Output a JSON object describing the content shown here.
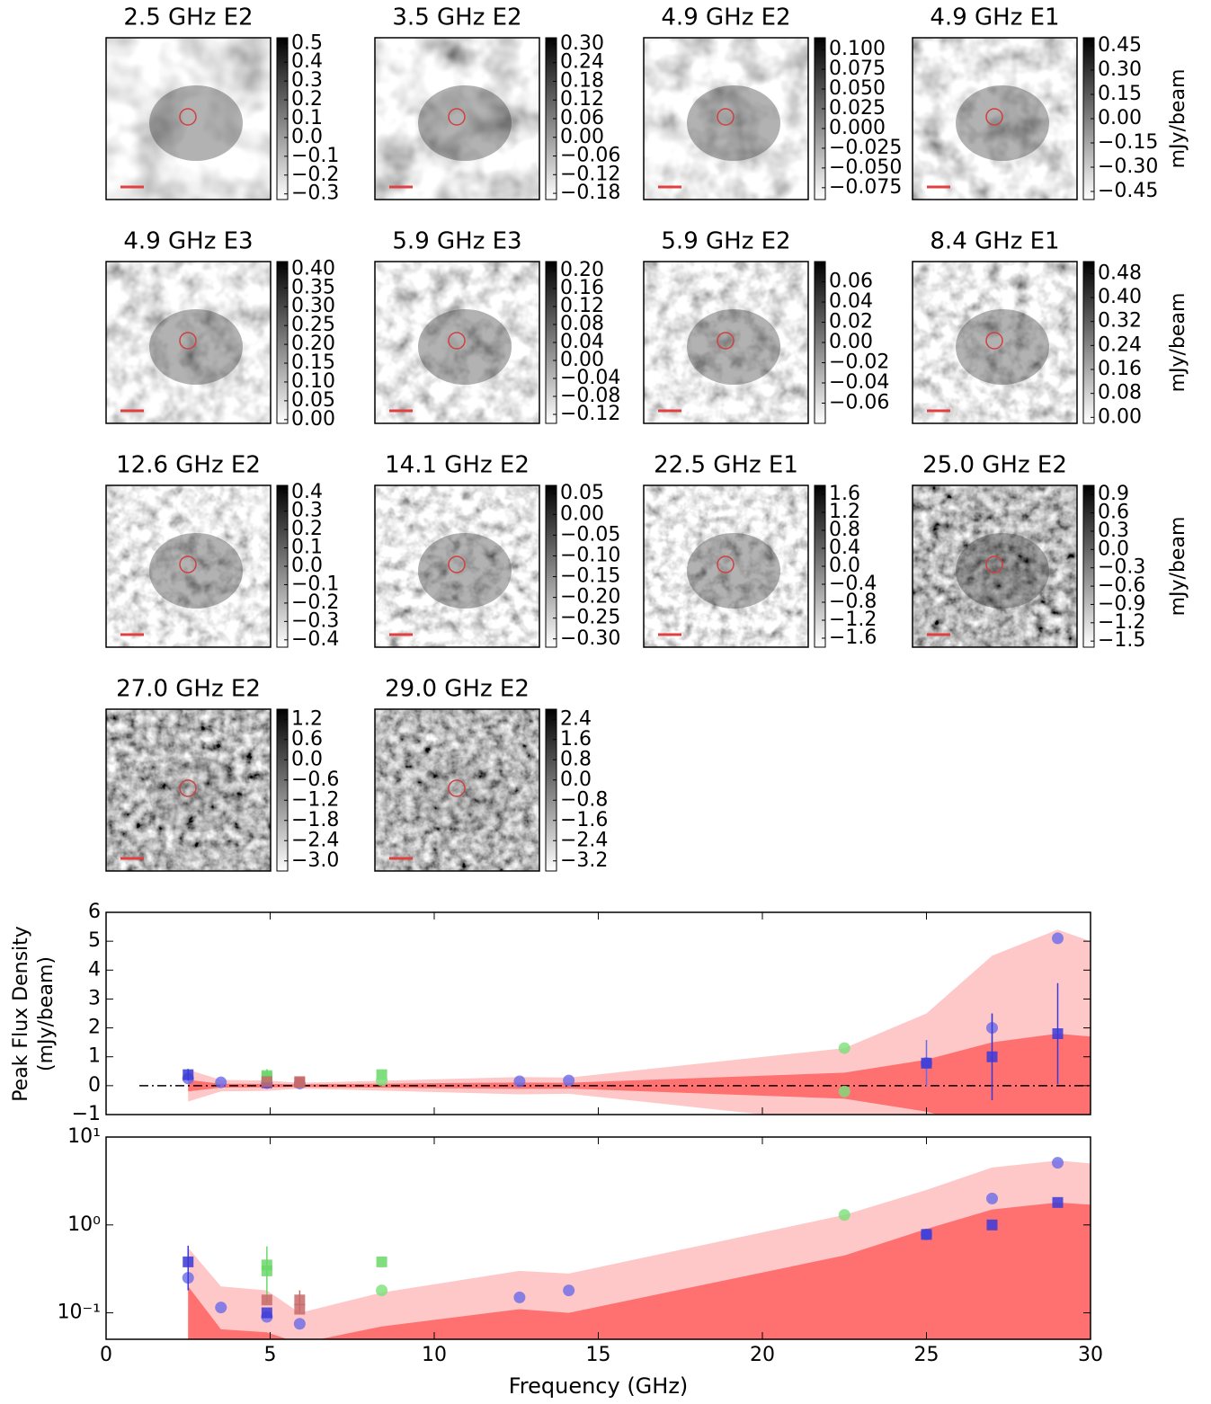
{
  "chart_data": [
    {
      "type": "image",
      "title": "2.5 GHz E2",
      "clim": [
        -0.33,
        0.53
      ],
      "cticks": [
        0.5,
        0.4,
        0.3,
        0.2,
        0.1,
        {
          "value": 0,
          "label": "0.0"
        },
        {
          "value": -0.1,
          "label": "−0.1"
        },
        {
          "value": -0.2,
          "label": "−0.2"
        },
        {
          "value": -0.3,
          "label": "−0.3"
        }
      ]
    },
    {
      "type": "image",
      "title": "3.5 GHz E2",
      "clim": [
        -0.2,
        0.32
      ],
      "cticks": [
        {
          "value": 0.3,
          "label": "0.30"
        },
        0.24,
        0.18,
        0.12,
        0.06,
        {
          "value": 0,
          "label": "0.00"
        },
        {
          "value": -0.06,
          "label": "−0.06"
        },
        {
          "value": -0.12,
          "label": "−0.12"
        },
        {
          "value": -0.18,
          "label": "−0.18"
        }
      ]
    },
    {
      "type": "image",
      "title": "4.9 GHz E2",
      "clim": [
        -0.09,
        0.115
      ],
      "cticks": [
        {
          "value": 0.1,
          "label": "0.100"
        },
        0.075,
        {
          "value": 0.05,
          "label": "0.050"
        },
        0.025,
        {
          "value": 0,
          "label": "0.000"
        },
        {
          "value": -0.025,
          "label": "−0.025"
        },
        {
          "value": -0.05,
          "label": "−0.050"
        },
        {
          "value": -0.075,
          "label": "−0.075"
        }
      ]
    },
    {
      "type": "image",
      "title": "4.9 GHz E1",
      "clim": [
        -0.5,
        0.5
      ],
      "cbar_label": "mJy/beam",
      "cticks": [
        0.45,
        {
          "value": 0.3,
          "label": "0.30"
        },
        0.15,
        {
          "value": 0,
          "label": "0.00"
        },
        {
          "value": -0.15,
          "label": "−0.15"
        },
        {
          "value": -0.3,
          "label": "−0.30"
        },
        {
          "value": -0.45,
          "label": "−0.45"
        }
      ]
    },
    {
      "type": "image",
      "title": "4.9 GHz E3",
      "clim": [
        -0.01,
        0.42
      ],
      "cticks": [
        {
          "value": 0.4,
          "label": "0.40"
        },
        0.35,
        {
          "value": 0.3,
          "label": "0.30"
        },
        0.25,
        {
          "value": 0.2,
          "label": "0.20"
        },
        0.15,
        {
          "value": 0.1,
          "label": "0.10"
        },
        0.05,
        {
          "value": 0,
          "label": "0.00"
        }
      ]
    },
    {
      "type": "image",
      "title": "5.9 GHz E3",
      "clim": [
        -0.14,
        0.22
      ],
      "cticks": [
        {
          "value": 0.2,
          "label": "0.20"
        },
        0.16,
        0.12,
        0.08,
        0.04,
        {
          "value": 0,
          "label": "0.00"
        },
        {
          "value": -0.04,
          "label": "−0.04"
        },
        {
          "value": -0.08,
          "label": "−0.08"
        },
        {
          "value": -0.12,
          "label": "−0.12"
        }
      ]
    },
    {
      "type": "image",
      "title": "5.9 GHz E2",
      "clim": [
        -0.08,
        0.08
      ],
      "cticks": [
        0.06,
        0.04,
        0.02,
        {
          "value": 0,
          "label": "0.00"
        },
        {
          "value": -0.02,
          "label": "−0.02"
        },
        {
          "value": -0.04,
          "label": "−0.04"
        },
        {
          "value": -0.06,
          "label": "−0.06"
        }
      ]
    },
    {
      "type": "image",
      "title": "8.4 GHz E1",
      "clim": [
        -0.02,
        0.52
      ],
      "cbar_label": "mJy/beam",
      "cticks": [
        0.48,
        {
          "value": 0.4,
          "label": "0.40"
        },
        0.32,
        0.24,
        0.16,
        0.08,
        {
          "value": 0,
          "label": "0.00"
        }
      ]
    },
    {
      "type": "image",
      "title": "12.6 GHz E2",
      "clim": [
        -0.44,
        0.44
      ],
      "cticks": [
        0.4,
        0.3,
        0.2,
        0.1,
        {
          "value": 0,
          "label": "0.0"
        },
        {
          "value": -0.1,
          "label": "−0.1"
        },
        {
          "value": -0.2,
          "label": "−0.2"
        },
        {
          "value": -0.3,
          "label": "−0.3"
        },
        {
          "value": -0.4,
          "label": "−0.4"
        }
      ]
    },
    {
      "type": "image",
      "title": "14.1 GHz E2",
      "clim": [
        -0.32,
        0.07
      ],
      "cticks": [
        0.05,
        {
          "value": 0,
          "label": "0.00"
        },
        {
          "value": -0.05,
          "label": "−0.05"
        },
        {
          "value": -0.1,
          "label": "−0.10"
        },
        {
          "value": -0.15,
          "label": "−0.15"
        },
        {
          "value": -0.2,
          "label": "−0.20"
        },
        {
          "value": -0.25,
          "label": "−0.25"
        },
        {
          "value": -0.3,
          "label": "−0.30"
        }
      ]
    },
    {
      "type": "image",
      "title": "22.5 GHz E1",
      "clim": [
        -1.8,
        1.8
      ],
      "cticks": [
        1.6,
        1.2,
        0.8,
        0.4,
        {
          "value": 0,
          "label": "0.0"
        },
        {
          "value": -0.4,
          "label": "−0.4"
        },
        {
          "value": -0.8,
          "label": "−0.8"
        },
        {
          "value": -1.2,
          "label": "−1.2"
        },
        {
          "value": -1.6,
          "label": "−1.6"
        }
      ]
    },
    {
      "type": "image",
      "title": "25.0 GHz E2",
      "clim": [
        -1.6,
        1.05
      ],
      "cbar_label": "mJy/beam",
      "cticks": [
        0.9,
        0.6,
        0.3,
        {
          "value": 0,
          "label": "0.0"
        },
        {
          "value": -0.3,
          "label": "−0.3"
        },
        {
          "value": -0.6,
          "label": "−0.6"
        },
        {
          "value": -0.9,
          "label": "−0.9"
        },
        {
          "value": -1.2,
          "label": "−1.2"
        },
        {
          "value": -1.5,
          "label": "−1.5"
        }
      ]
    },
    {
      "type": "image",
      "title": "27.0 GHz E2",
      "clim": [
        -3.3,
        1.5
      ],
      "cticks": [
        1.2,
        0.6,
        {
          "value": 0,
          "label": "0.0"
        },
        {
          "value": -0.6,
          "label": "−0.6"
        },
        {
          "value": -1.2,
          "label": "−1.2"
        },
        {
          "value": -1.8,
          "label": "−1.8"
        },
        {
          "value": -2.4,
          "label": "−2.4"
        },
        {
          "value": -3,
          "label": "−3.0"
        }
      ]
    },
    {
      "type": "image",
      "title": "29.0 GHz E2",
      "clim": [
        -3.6,
        2.8
      ],
      "cticks": [
        2.4,
        1.6,
        0.8,
        {
          "value": 0,
          "label": "0.0"
        },
        {
          "value": -0.8,
          "label": "−0.8"
        },
        {
          "value": -1.6,
          "label": "−1.6"
        },
        {
          "value": -2.4,
          "label": "−2.4"
        },
        {
          "value": -3.2,
          "label": "−3.2"
        }
      ]
    },
    {
      "type": "scatter",
      "ylabel": [
        "Peak Flux Density",
        "(mJy/beam)"
      ],
      "log": false,
      "xlim": [
        0,
        30
      ],
      "xticks": [
        0,
        5,
        10,
        15,
        20,
        25,
        30
      ],
      "show_xticklabels": false,
      "ylim": [
        -1,
        6
      ],
      "yticks": [
        {
          "value": -1,
          "label": "−1"
        },
        0,
        1,
        2,
        3,
        4,
        5,
        6
      ],
      "hline": 0,
      "bands": [
        {
          "color": "#ffc8c8",
          "x": [
            2.5,
            3.5,
            4.9,
            5.9,
            8.4,
            12.6,
            14.1,
            22.5,
            25,
            27,
            29,
            30
          ],
          "upper": [
            0.55,
            0.2,
            0.18,
            0.1,
            0.17,
            0.3,
            0.28,
            1.3,
            2.5,
            4.5,
            5.4,
            5.0
          ],
          "lower": [
            -0.55,
            -0.2,
            -0.18,
            -0.1,
            -0.17,
            -0.3,
            -0.28,
            -1.3,
            -2.5,
            -4.5,
            -5.4,
            -5.0
          ]
        },
        {
          "color": "#ff7070",
          "x": [
            2.5,
            3.5,
            4.9,
            5.9,
            8.4,
            12.6,
            14.1,
            22.5,
            25,
            27,
            29,
            30
          ],
          "upper": [
            0.2,
            0.065,
            0.06,
            0.045,
            0.07,
            0.11,
            0.1,
            0.45,
            0.9,
            1.5,
            1.8,
            1.7
          ],
          "lower": [
            -0.2,
            -0.065,
            -0.06,
            -0.045,
            -0.07,
            -0.11,
            -0.1,
            -0.45,
            -0.9,
            -1.5,
            -1.8,
            -1.7
          ]
        }
      ],
      "series": [
        {
          "color": "#6a6ae8",
          "marker": "circle",
          "x": [
            2.5,
            3.5,
            4.9,
            5.9,
            12.6,
            14.1,
            25,
            27,
            29
          ],
          "values": [
            0.25,
            0.115,
            0.09,
            0.075,
            0.15,
            0.18,
            0.78,
            2.0,
            5.1
          ],
          "errors": [
            null,
            null,
            null,
            null,
            null,
            null,
            0.8,
            0.5,
            null
          ]
        },
        {
          "color": "#3a3ad8",
          "marker": "square",
          "x": [
            2.5,
            4.9,
            25,
            27,
            29
          ],
          "values": [
            0.38,
            0.1,
            0.78,
            1.0,
            1.8
          ],
          "errors": [
            0.2,
            null,
            null,
            1.5,
            1.75
          ]
        },
        {
          "color": "#6ad86a",
          "marker": "square",
          "x": [
            4.9,
            4.9,
            8.4
          ],
          "values": [
            0.35,
            0.3,
            0.38
          ],
          "errors": [
            0.22,
            null,
            null
          ]
        },
        {
          "color": "#7ae07a",
          "marker": "circle",
          "x": [
            8.4,
            22.5,
            22.5
          ],
          "values": [
            0.18,
            1.3,
            -0.2
          ],
          "errors": [
            null,
            null,
            null
          ]
        },
        {
          "color": "#c86a6a",
          "marker": "square",
          "x": [
            4.9,
            5.9,
            5.9
          ],
          "values": [
            0.14,
            0.14,
            0.11
          ],
          "errors": [
            null,
            0.04,
            null
          ]
        }
      ]
    },
    {
      "type": "scatter",
      "xlabel": "Frequency (GHz)",
      "log": true,
      "xlim": [
        0,
        30
      ],
      "xticks": [
        0,
        5,
        10,
        15,
        20,
        25,
        30
      ],
      "show_xticklabels": true,
      "ylim": [
        0.05,
        10
      ],
      "yticks": [
        {
          "value": 0.1,
          "label": "10⁻¹"
        },
        {
          "value": 1,
          "label": "10⁰"
        },
        {
          "value": 10,
          "label": "10¹"
        }
      ],
      "bands": [
        {
          "color": "#ffc8c8",
          "x": [
            2.5,
            3.5,
            4.9,
            5.9,
            8.4,
            12.6,
            14.1,
            22.5,
            25,
            27,
            29,
            30
          ],
          "upper": [
            0.55,
            0.2,
            0.18,
            0.1,
            0.17,
            0.3,
            0.28,
            1.3,
            2.5,
            4.5,
            5.4,
            5.0
          ]
        },
        {
          "color": "#ff7070",
          "x": [
            2.5,
            3.5,
            4.9,
            5.9,
            8.4,
            12.6,
            14.1,
            22.5,
            25,
            27,
            29,
            30
          ],
          "upper": [
            0.2,
            0.065,
            0.06,
            0.045,
            0.07,
            0.11,
            0.1,
            0.45,
            0.9,
            1.5,
            1.8,
            1.7
          ]
        }
      ],
      "series": [
        {
          "color": "#6a6ae8",
          "marker": "circle",
          "x": [
            2.5,
            3.5,
            4.9,
            5.9,
            12.6,
            14.1,
            25,
            27,
            29
          ],
          "values": [
            0.25,
            0.115,
            0.09,
            0.075,
            0.15,
            0.18,
            0.78,
            2.0,
            5.1
          ],
          "errors": [
            null,
            null,
            null,
            null,
            null,
            null,
            null,
            null,
            null
          ]
        },
        {
          "color": "#3a3ad8",
          "marker": "square",
          "x": [
            2.5,
            4.9,
            25,
            27,
            29
          ],
          "values": [
            0.38,
            0.1,
            0.78,
            1.0,
            1.8
          ],
          "errors": [
            0.2,
            null,
            null,
            null,
            null
          ]
        },
        {
          "color": "#6ad86a",
          "marker": "square",
          "x": [
            4.9,
            4.9,
            8.4
          ],
          "values": [
            0.35,
            0.3,
            0.38
          ],
          "errors": [
            0.22,
            null,
            null
          ]
        },
        {
          "color": "#7ae07a",
          "marker": "circle",
          "x": [
            8.4,
            22.5
          ],
          "values": [
            0.18,
            1.3
          ],
          "errors": [
            null,
            null
          ]
        },
        {
          "color": "#c86a6a",
          "marker": "square",
          "x": [
            4.9,
            5.9,
            5.9
          ],
          "values": [
            0.14,
            0.14,
            0.11
          ],
          "errors": [
            null,
            0.04,
            null
          ]
        }
      ]
    }
  ]
}
